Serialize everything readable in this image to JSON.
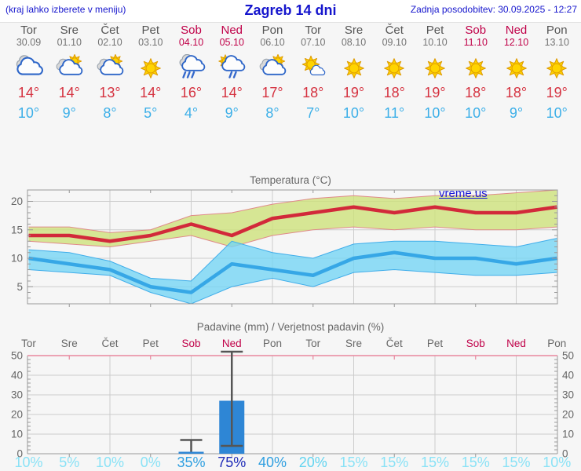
{
  "header": {
    "left_note": "(kraj lahko izberete v meniju)",
    "title": "Zagreb 14 dni",
    "last_update": "Zadnja posodobitev: 30.09.2025 - 12:27"
  },
  "watermark": "vreme.us",
  "units": {
    "degree": "°",
    "percent": "%"
  },
  "days": [
    {
      "name": "Tor",
      "date": "30.09",
      "weekend": false,
      "icon": "cloudy",
      "high": 14,
      "low": 10,
      "precip_prob": 10
    },
    {
      "name": "Sre",
      "date": "01.10",
      "weekend": false,
      "icon": "sun-clouds",
      "high": 14,
      "low": 9,
      "precip_prob": 5
    },
    {
      "name": "Čet",
      "date": "02.10",
      "weekend": false,
      "icon": "sun-clouds",
      "high": 13,
      "low": 8,
      "precip_prob": 10
    },
    {
      "name": "Pet",
      "date": "03.10",
      "weekend": false,
      "icon": "sunny",
      "high": 14,
      "low": 5,
      "precip_prob": 0
    },
    {
      "name": "Sob",
      "date": "04.10",
      "weekend": true,
      "icon": "rain",
      "high": 16,
      "low": 4,
      "precip_prob": 35
    },
    {
      "name": "Ned",
      "date": "05.10",
      "weekend": true,
      "icon": "sun-rain",
      "high": 14,
      "low": 9,
      "precip_prob": 75
    },
    {
      "name": "Pon",
      "date": "06.10",
      "weekend": false,
      "icon": "sun-clouds",
      "high": 17,
      "low": 8,
      "precip_prob": 40
    },
    {
      "name": "Tor",
      "date": "07.10",
      "weekend": false,
      "icon": "mostly-sunny",
      "high": 18,
      "low": 7,
      "precip_prob": 20
    },
    {
      "name": "Sre",
      "date": "08.10",
      "weekend": false,
      "icon": "sunny",
      "high": 19,
      "low": 10,
      "precip_prob": 15
    },
    {
      "name": "Čet",
      "date": "09.10",
      "weekend": false,
      "icon": "sunny",
      "high": 18,
      "low": 11,
      "precip_prob": 15
    },
    {
      "name": "Pet",
      "date": "10.10",
      "weekend": false,
      "icon": "sunny",
      "high": 19,
      "low": 10,
      "precip_prob": 15
    },
    {
      "name": "Sob",
      "date": "11.10",
      "weekend": true,
      "icon": "sunny",
      "high": 18,
      "low": 10,
      "precip_prob": 15
    },
    {
      "name": "Ned",
      "date": "12.10",
      "weekend": true,
      "icon": "sunny",
      "high": 18,
      "low": 9,
      "precip_prob": 15
    },
    {
      "name": "Pon",
      "date": "13.10",
      "weekend": false,
      "icon": "sunny",
      "high": 19,
      "low": 10,
      "precip_prob": 10
    }
  ],
  "chart_data": [
    {
      "type": "line",
      "title": "Temperatura (°C)",
      "x": [
        "Tor 30.09",
        "Sre 01.10",
        "Čet 02.10",
        "Pet 03.10",
        "Sob 04.10",
        "Ned 05.10",
        "Pon 06.10",
        "Tor 07.10",
        "Sre 08.10",
        "Čet 09.10",
        "Pet 10.10",
        "Sob 11.10",
        "Ned 12.10",
        "Pon 13.10"
      ],
      "ylim": [
        2,
        22
      ],
      "yticks": [
        5,
        10,
        15,
        20
      ],
      "grid": true,
      "series": [
        {
          "name": "max temperatura",
          "values": [
            14,
            14,
            13,
            14,
            16,
            14,
            17,
            18,
            19,
            18,
            19,
            18,
            18,
            19
          ]
        },
        {
          "name": "min temperatura",
          "values": [
            10,
            9,
            8,
            5,
            4,
            9,
            8,
            7,
            10,
            11,
            10,
            10,
            9,
            10
          ]
        }
      ],
      "bands": [
        {
          "name": "max razpon",
          "upper": [
            15.5,
            15.5,
            14.5,
            15,
            17.5,
            18,
            19.5,
            20.5,
            21,
            20.5,
            21,
            21,
            21.5,
            22
          ],
          "lower": [
            13,
            12.5,
            12,
            13,
            14,
            12,
            14,
            15,
            15.5,
            15,
            15.5,
            15,
            15,
            15.5
          ]
        },
        {
          "name": "min razpon",
          "upper": [
            11.5,
            11,
            9.5,
            6.5,
            6,
            13,
            11,
            10,
            12.5,
            13,
            13,
            12.5,
            12,
            13.5
          ],
          "lower": [
            8,
            7.5,
            7,
            4,
            2,
            5,
            6.5,
            5,
            7.5,
            8,
            7.5,
            7,
            7,
            7.5
          ]
        }
      ]
    },
    {
      "type": "bar",
      "title": "Padavine (mm) / Verjetnost padavin (%)",
      "x": [
        "Tor",
        "Sre",
        "Čet",
        "Pet",
        "Sob",
        "Ned",
        "Pon",
        "Tor",
        "Sre",
        "Čet",
        "Pet",
        "Sob",
        "Ned",
        "Pon"
      ],
      "ylim": [
        0,
        50
      ],
      "yticks": [
        0,
        10,
        20,
        30,
        40,
        50
      ],
      "grid": true,
      "values": [
        0,
        0,
        0,
        0,
        1,
        27,
        0,
        0,
        0,
        0,
        0,
        0,
        0,
        0
      ],
      "whiskers": [
        null,
        null,
        null,
        null,
        {
          "max": 7
        },
        {
          "min": 4,
          "max": 52
        },
        null,
        null,
        null,
        null,
        null,
        null,
        null,
        null
      ],
      "probabilities": [
        10,
        5,
        10,
        0,
        35,
        75,
        40,
        20,
        15,
        15,
        15,
        15,
        15,
        10
      ]
    }
  ],
  "colors": {
    "header_text": "#1515cd",
    "weekday": "#555555",
    "date": "#747474",
    "weekend": "#c00048",
    "high_temp": "#d53240",
    "low_temp": "#3cafe8",
    "grid": "#cccccc",
    "axis": "#999999",
    "axis_label": "#666666",
    "title_gray": "#666666",
    "temp_line_high": "#d2293a",
    "temp_line_low": "#36a7e6",
    "band_high_fill": "#cde178",
    "band_low_fill": "#73d5f5",
    "band_high_edge": "#e08a8a",
    "band_low_edge": "#3fadea",
    "bar": "#2e86d5",
    "whisker": "#555555",
    "precip_top_axis": "#e8879e",
    "prob_very_low": "#8ae2f6",
    "prob_low": "#62d4f0",
    "prob_mid": "#2f9fe0",
    "prob_high": "#1f2cb8",
    "watermark": "#1a1ad6",
    "sun": "#ffd400",
    "sun_stroke": "#dd9900",
    "cloud_white": "#fdfdfd",
    "cloud_white_stroke": "#2e66c8",
    "cloud_gray": "#d9d9d9",
    "cloud_gray_stroke": "#98a2ad",
    "rain_streak": "#3468cc"
  }
}
